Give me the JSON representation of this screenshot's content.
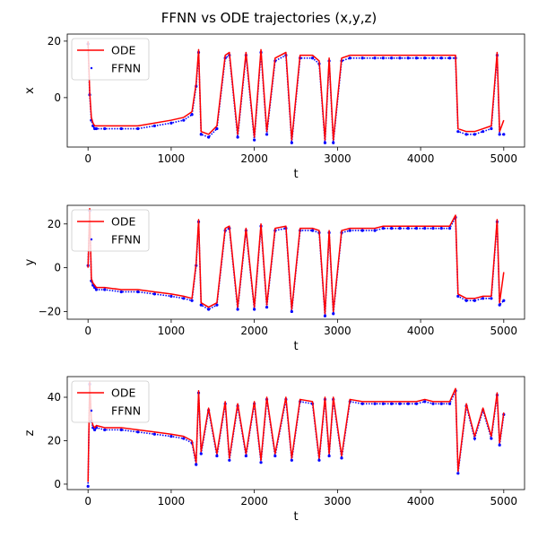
{
  "figure": {
    "title": "FFNN vs ODE trajectories (x,y,z)"
  },
  "colors": {
    "ode": "#ff0000",
    "ffnn": "#0000ff"
  },
  "chart_data": [
    {
      "type": "line",
      "title": "",
      "xlabel": "t",
      "ylabel": "x",
      "xlim": [
        -250,
        5250
      ],
      "ylim": [
        -17.5,
        22.5
      ],
      "xticks": [
        0,
        1000,
        2000,
        3000,
        4000,
        5000
      ],
      "yticks": [
        -20,
        0,
        20
      ],
      "legend": {
        "position": "top-left"
      },
      "series": [
        {
          "name": "ODE",
          "style": "line",
          "color": "#ff0000",
          "x": [
            0,
            20,
            40,
            60,
            80,
            100,
            200,
            400,
            600,
            800,
            1000,
            1150,
            1250,
            1300,
            1330,
            1360,
            1450,
            1550,
            1650,
            1700,
            1800,
            1900,
            2000,
            2080,
            2150,
            2250,
            2380,
            2450,
            2550,
            2700,
            2780,
            2850,
            2900,
            2950,
            3050,
            3150,
            3300,
            3450,
            3550,
            3650,
            3750,
            3850,
            3950,
            4050,
            4150,
            4250,
            4350,
            4420,
            4450,
            4550,
            4650,
            4750,
            4850,
            4920,
            4950,
            5000
          ],
          "y": [
            20,
            2,
            -7,
            -9,
            -10,
            -10,
            -10,
            -10,
            -10,
            -9,
            -8,
            -7,
            -5,
            5,
            17,
            -12,
            -13,
            -10,
            15,
            16,
            -13,
            16,
            -14,
            17,
            -12,
            14,
            16,
            -15,
            15,
            15,
            13,
            -15,
            14,
            -15,
            14,
            15,
            15,
            15,
            15,
            15,
            15,
            15,
            15,
            15,
            15,
            15,
            15,
            15,
            -11,
            -12,
            -12,
            -11,
            -10,
            16,
            -12,
            -8
          ]
        },
        {
          "name": "FFNN",
          "style": "points",
          "color": "#0000ff",
          "x": [
            0,
            20,
            40,
            60,
            80,
            100,
            200,
            400,
            600,
            800,
            1000,
            1150,
            1250,
            1300,
            1330,
            1360,
            1450,
            1550,
            1650,
            1700,
            1800,
            1900,
            2000,
            2080,
            2150,
            2250,
            2380,
            2450,
            2550,
            2700,
            2780,
            2850,
            2900,
            2950,
            3050,
            3150,
            3300,
            3450,
            3550,
            3650,
            3750,
            3850,
            3950,
            4050,
            4150,
            4250,
            4350,
            4420,
            4450,
            4550,
            4650,
            4750,
            4850,
            4920,
            4950,
            5000
          ],
          "y": [
            19,
            1,
            -8,
            -10,
            -11,
            -11,
            -11,
            -11,
            -11,
            -10,
            -9,
            -8,
            -6,
            4,
            16,
            -13,
            -14,
            -11,
            14,
            15,
            -14,
            15,
            -15,
            16,
            -13,
            13,
            15,
            -16,
            14,
            14,
            12,
            -16,
            13,
            -16,
            13,
            14,
            14,
            14,
            14,
            14,
            14,
            14,
            14,
            14,
            14,
            14,
            14,
            14,
            -12,
            -13,
            -13,
            -12,
            -11,
            15,
            -13,
            -13
          ]
        }
      ]
    },
    {
      "type": "line",
      "title": "",
      "xlabel": "t",
      "ylabel": "y",
      "xlim": [
        -250,
        5250
      ],
      "ylim": [
        -23.5,
        28.5
      ],
      "xticks": [
        0,
        1000,
        2000,
        3000,
        4000,
        5000
      ],
      "yticks": [
        -20,
        0,
        20
      ],
      "legend": {
        "position": "top-left"
      },
      "series": [
        {
          "name": "ODE",
          "style": "line",
          "color": "#ff0000",
          "x": [
            0,
            20,
            40,
            60,
            80,
            100,
            200,
            400,
            600,
            800,
            1000,
            1150,
            1250,
            1300,
            1330,
            1360,
            1450,
            1550,
            1650,
            1700,
            1800,
            1900,
            2000,
            2080,
            2150,
            2250,
            2380,
            2450,
            2550,
            2700,
            2780,
            2850,
            2900,
            2950,
            3050,
            3150,
            3300,
            3450,
            3550,
            3650,
            3750,
            3850,
            3950,
            4050,
            4150,
            4250,
            4350,
            4420,
            4450,
            4550,
            4650,
            4750,
            4850,
            4920,
            4950,
            5000
          ],
          "y": [
            0,
            27,
            -5,
            -7,
            -8,
            -9,
            -9,
            -10,
            -10,
            -11,
            -12,
            -13,
            -14,
            2,
            22,
            -16,
            -18,
            -16,
            18,
            19,
            -18,
            18,
            -18,
            20,
            -17,
            18,
            19,
            -19,
            18,
            18,
            17,
            -21,
            17,
            -20,
            17,
            18,
            18,
            18,
            19,
            19,
            19,
            19,
            19,
            19,
            19,
            19,
            19,
            24,
            -12,
            -14,
            -14,
            -13,
            -13,
            22,
            -16,
            -2
          ]
        },
        {
          "name": "FFNN",
          "style": "points",
          "color": "#0000ff",
          "x": [
            0,
            20,
            40,
            60,
            80,
            100,
            200,
            400,
            600,
            800,
            1000,
            1150,
            1250,
            1300,
            1330,
            1360,
            1450,
            1550,
            1650,
            1700,
            1800,
            1900,
            2000,
            2080,
            2150,
            2250,
            2380,
            2450,
            2550,
            2700,
            2780,
            2850,
            2900,
            2950,
            3050,
            3150,
            3300,
            3450,
            3550,
            3650,
            3750,
            3850,
            3950,
            4050,
            4150,
            4250,
            4350,
            4420,
            4450,
            4550,
            4650,
            4750,
            4850,
            4920,
            4950,
            5000
          ],
          "y": [
            1,
            26,
            -6,
            -8,
            -9,
            -10,
            -10,
            -11,
            -11,
            -12,
            -13,
            -14,
            -15,
            1,
            21,
            -17,
            -19,
            -17,
            17,
            18,
            -19,
            17,
            -19,
            19,
            -18,
            17,
            18,
            -20,
            17,
            17,
            16,
            -22,
            16,
            -21,
            16,
            17,
            17,
            17,
            18,
            18,
            18,
            18,
            18,
            18,
            18,
            18,
            18,
            23,
            -13,
            -15,
            -15,
            -14,
            -14,
            21,
            -17,
            -15
          ]
        }
      ]
    },
    {
      "type": "line",
      "title": "",
      "xlabel": "t",
      "ylabel": "z",
      "xlim": [
        -250,
        5250
      ],
      "ylim": [
        -2.5,
        49.5
      ],
      "xticks": [
        0,
        1000,
        2000,
        3000,
        4000,
        5000
      ],
      "yticks": [
        0,
        20,
        40
      ],
      "legend": {
        "position": "top-left"
      },
      "series": [
        {
          "name": "ODE",
          "style": "line",
          "color": "#ff0000",
          "x": [
            0,
            20,
            40,
            60,
            80,
            100,
            200,
            400,
            600,
            800,
            1000,
            1150,
            1250,
            1300,
            1330,
            1360,
            1450,
            1550,
            1650,
            1700,
            1800,
            1900,
            2000,
            2080,
            2150,
            2250,
            2380,
            2450,
            2550,
            2700,
            2780,
            2850,
            2900,
            2950,
            3050,
            3150,
            3300,
            3450,
            3550,
            3650,
            3750,
            3850,
            3950,
            4050,
            4150,
            4250,
            4350,
            4420,
            4450,
            4550,
            4650,
            4750,
            4850,
            4920,
            4950,
            5000
          ],
          "y": [
            1,
            47,
            30,
            27,
            26,
            27,
            26,
            26,
            25,
            24,
            23,
            22,
            20,
            10,
            43,
            15,
            35,
            14,
            38,
            12,
            37,
            14,
            38,
            11,
            40,
            14,
            40,
            12,
            39,
            38,
            12,
            40,
            14,
            40,
            13,
            39,
            38,
            38,
            38,
            38,
            38,
            38,
            38,
            39,
            38,
            38,
            38,
            44,
            6,
            37,
            22,
            35,
            22,
            42,
            19,
            33
          ]
        },
        {
          "name": "FFNN",
          "style": "points",
          "color": "#0000ff",
          "x": [
            0,
            20,
            40,
            60,
            80,
            100,
            200,
            400,
            600,
            800,
            1000,
            1150,
            1250,
            1300,
            1330,
            1360,
            1450,
            1550,
            1650,
            1700,
            1800,
            1900,
            2000,
            2080,
            2150,
            2250,
            2380,
            2450,
            2550,
            2700,
            2780,
            2850,
            2900,
            2950,
            3050,
            3150,
            3300,
            3450,
            3550,
            3650,
            3750,
            3850,
            3950,
            4050,
            4150,
            4250,
            4350,
            4420,
            4450,
            4550,
            4650,
            4750,
            4850,
            4920,
            4950,
            5000
          ],
          "y": [
            -1,
            46,
            29,
            26,
            25,
            26,
            25,
            25,
            24,
            23,
            22,
            21,
            19,
            9,
            42,
            14,
            34,
            13,
            37,
            11,
            36,
            13,
            37,
            10,
            39,
            13,
            39,
            11,
            38,
            37,
            11,
            39,
            13,
            39,
            12,
            38,
            37,
            37,
            37,
            37,
            37,
            37,
            37,
            38,
            37,
            37,
            37,
            43,
            5,
            36,
            21,
            34,
            21,
            41,
            18,
            32
          ]
        }
      ]
    }
  ]
}
